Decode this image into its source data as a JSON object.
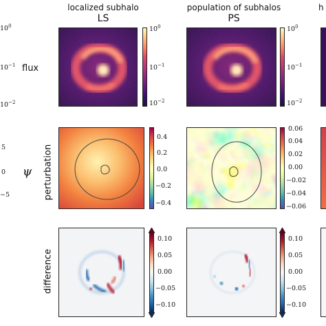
{
  "columns": [
    {
      "title": "localized subhalo",
      "subtitle": "LS"
    },
    {
      "title": "population of subhalos",
      "subtitle": "PS"
    },
    {
      "title": "h",
      "subtitle": ""
    }
  ],
  "rows": [
    {
      "label": "flux"
    },
    {
      "label": "perturbation"
    },
    {
      "label": "difference"
    }
  ],
  "left_axis": {
    "flux_label": "flux",
    "psi_label": "ψ",
    "flux_ticks": [
      {
        "base": "10",
        "exp": "0"
      },
      {
        "base": "10",
        "exp": "−1"
      },
      {
        "base": "10",
        "exp": "−2"
      }
    ],
    "psi_ticks": [
      "5",
      "0",
      "−5"
    ]
  },
  "colorbars": {
    "flux_ticks": [
      {
        "base": "10",
        "exp": "0"
      },
      {
        "base": "10",
        "exp": "−1"
      },
      {
        "base": "10",
        "exp": "−2"
      }
    ],
    "perturbation_ls_ticks": [
      "0.4",
      "0.2",
      "0.0",
      "−0.2",
      "−0.4"
    ],
    "perturbation_ps_ticks": [
      "0.06",
      "0.04",
      "0.02",
      "0.00",
      "−0.02",
      "−0.04",
      "−0.06"
    ],
    "difference_ticks": [
      "0.10",
      "0.05",
      "0.00",
      "−0.05",
      "−0.10"
    ]
  },
  "colors": {
    "magma_dark": "#2a0a4a",
    "magma_mid": "#c43c6e",
    "magma_bright": "#fde3b0",
    "diverging_red": "#b2182b",
    "diverging_blue": "#2166ac",
    "spectral_red": "#a3213f",
    "spectral_blue": "#3b5fa6"
  }
}
